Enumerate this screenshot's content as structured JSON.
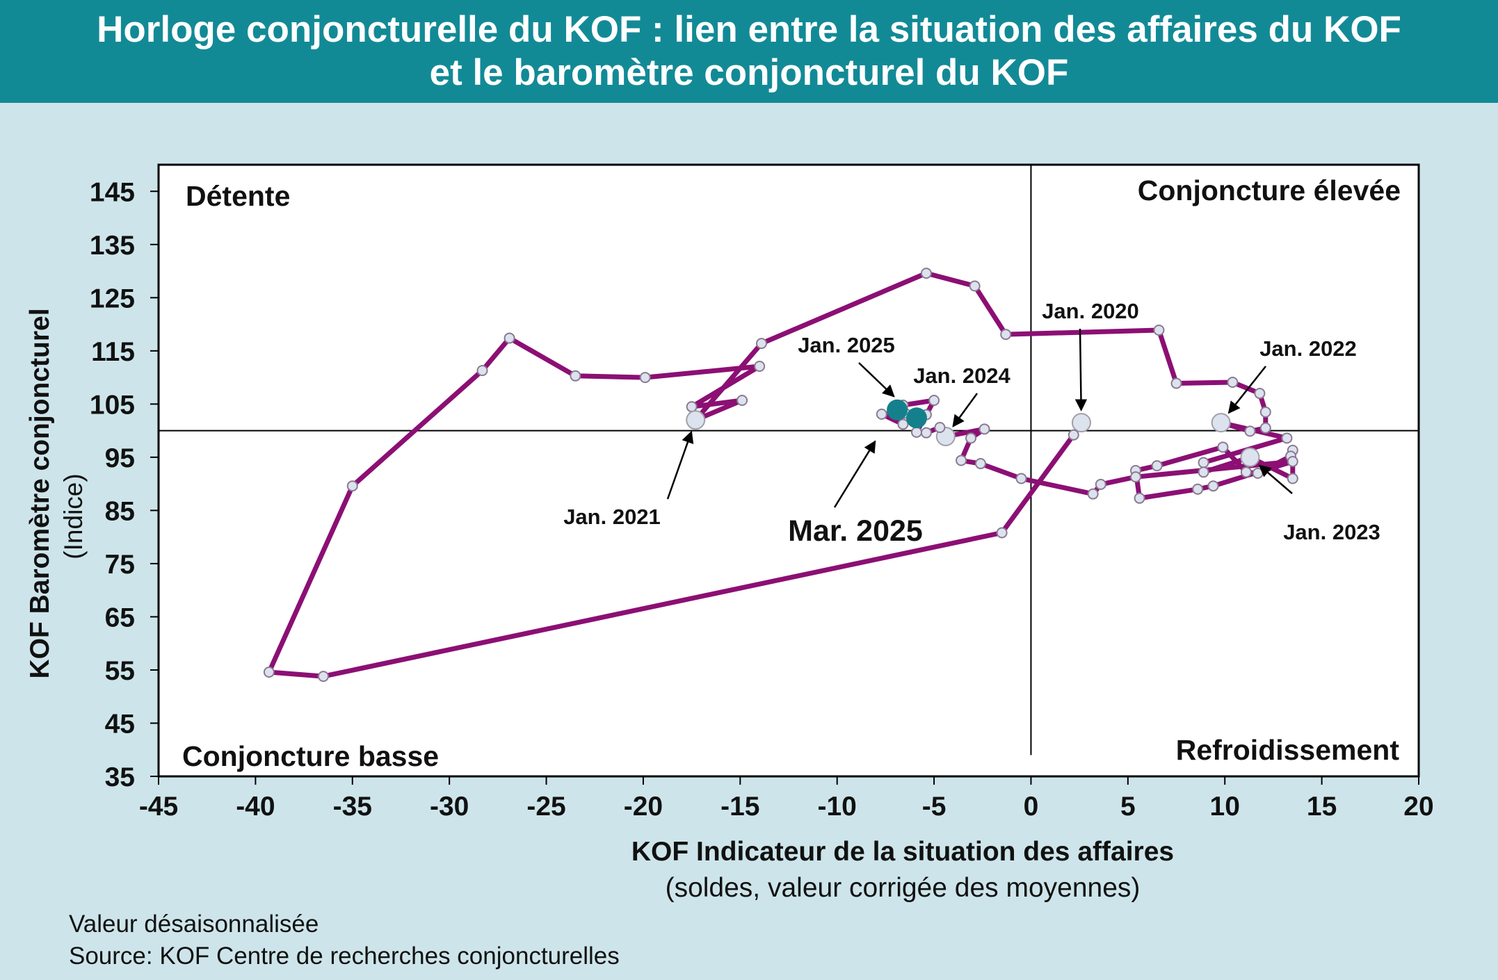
{
  "header": {
    "title_line1": "Horloge conjoncturelle du KOF : lien entre la situation des affaires du KOF",
    "title_line2": "et le baromètre conjoncturel du KOF"
  },
  "footer": {
    "note": "Valeur désaisonnalisée",
    "source": "Source: KOF Centre de recherches conjoncturelles"
  },
  "chart_data": {
    "type": "line",
    "xlabel": "KOF Indicateur de la situation des affaires",
    "xlabel_sub": "(soldes, valeur corrigée des moyennes)",
    "ylabel": "KOF Baromètre conjoncturel",
    "ylabel_sub": "(Indice)",
    "xlim": [
      -45,
      20
    ],
    "ylim": [
      35,
      150
    ],
    "xticks": [
      -45,
      -40,
      -35,
      -30,
      -25,
      -20,
      -15,
      -10,
      -5,
      0,
      5,
      10,
      15,
      20
    ],
    "yticks": [
      35,
      45,
      55,
      65,
      75,
      85,
      95,
      105,
      115,
      125,
      135,
      145
    ],
    "reference_lines": {
      "x": 0,
      "y": 100
    },
    "quadrants": {
      "top_left": "Détente",
      "top_right": "Conjoncture élevée",
      "bottom_left": "Conjoncture basse",
      "bottom_right": "Refroidissement"
    },
    "series": [
      {
        "color": "#8c0f74",
        "points": [
          [
            2.6,
            101.5
          ],
          [
            2.2,
            99.2
          ],
          [
            -1.5,
            80.8
          ],
          [
            -36.5,
            53.8
          ],
          [
            -39.3,
            54.6
          ],
          [
            -35.0,
            89.6
          ],
          [
            -28.3,
            111.3
          ],
          [
            -26.9,
            117.4
          ],
          [
            -23.5,
            110.3
          ],
          [
            -19.9,
            110.0
          ],
          [
            -14.0,
            112.1
          ],
          [
            -17.5,
            104.5
          ],
          [
            -14.9,
            105.7
          ],
          [
            -17.3,
            102.0
          ],
          [
            -13.9,
            116.4
          ],
          [
            -5.4,
            129.6
          ],
          [
            -2.9,
            127.2
          ],
          [
            -1.3,
            118.1
          ],
          [
            6.6,
            118.9
          ],
          [
            7.5,
            108.9
          ],
          [
            10.4,
            109.1
          ],
          [
            11.8,
            107.0
          ],
          [
            12.1,
            103.5
          ],
          [
            12.1,
            100.5
          ],
          [
            11.3,
            99.9
          ],
          [
            9.8,
            101.5
          ],
          [
            13.2,
            98.6
          ],
          [
            8.9,
            94.0
          ],
          [
            8.9,
            92.2
          ],
          [
            11.3,
            95.0
          ],
          [
            13.5,
            91.0
          ],
          [
            13.5,
            96.3
          ],
          [
            13.4,
            95.2
          ],
          [
            11.7,
            92.0
          ],
          [
            11.1,
            92.2
          ],
          [
            9.9,
            96.9
          ],
          [
            6.5,
            93.4
          ],
          [
            5.4,
            92.5
          ],
          [
            5.6,
            87.3
          ],
          [
            8.6,
            89.0
          ],
          [
            9.4,
            89.6
          ],
          [
            13.5,
            94.2
          ],
          [
            5.4,
            91.3
          ],
          [
            3.6,
            89.9
          ],
          [
            3.2,
            88.1
          ],
          [
            -0.5,
            91.0
          ],
          [
            -2.6,
            93.8
          ],
          [
            -3.6,
            94.4
          ],
          [
            -3.1,
            98.6
          ],
          [
            -2.4,
            100.3
          ],
          [
            -4.4,
            98.9
          ],
          [
            -4.7,
            100.6
          ],
          [
            -5.4,
            99.6
          ],
          [
            -5.9,
            99.7
          ],
          [
            -5.4,
            103.0
          ],
          [
            -5.0,
            105.7
          ],
          [
            -6.6,
            104.8
          ],
          [
            -6.5,
            103.3
          ],
          [
            -7.7,
            103.1
          ],
          [
            -6.6,
            101.2
          ],
          [
            -6.9,
            103.9
          ],
          [
            -5.9,
            102.4
          ]
        ],
        "highlighted_points": [
          [
            -6.9,
            103.9
          ],
          [
            -5.9,
            102.4
          ]
        ],
        "highlight_color": "#14808c",
        "large_markers": [
          [
            2.6,
            101.5
          ],
          [
            -17.3,
            102.0
          ],
          [
            9.8,
            101.5
          ],
          [
            11.3,
            95.0
          ],
          [
            -4.4,
            98.9
          ]
        ]
      }
    ],
    "annotations": [
      {
        "text": "Jan. 2020",
        "at": [
          2.6,
          101.5
        ]
      },
      {
        "text": "Jan. 2021",
        "at": [
          -17.3,
          102.0
        ]
      },
      {
        "text": "Jan. 2022",
        "at": [
          9.8,
          101.5
        ]
      },
      {
        "text": "Jan. 2023",
        "at": [
          11.3,
          95.0
        ]
      },
      {
        "text": "Jan. 2024",
        "at": [
          -4.4,
          98.9
        ]
      },
      {
        "text": "Jan. 2025",
        "at": [
          -6.6,
          104.8
        ]
      },
      {
        "text": "Mar. 2025",
        "at": [
          -7.7,
          100.0
        ]
      }
    ]
  }
}
